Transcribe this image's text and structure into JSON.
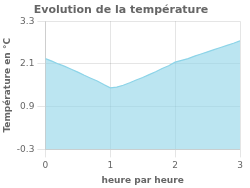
{
  "chart_data": {
    "type": "area",
    "title": "Evolution de la température",
    "x_label": "heure par heure",
    "y_label": "Température en °C",
    "x": [
      0,
      0.1,
      0.2,
      0.3,
      0.4,
      0.5,
      0.6,
      0.7,
      0.8,
      0.9,
      1.0,
      1.1,
      1.2,
      1.3,
      1.4,
      1.5,
      1.6,
      1.7,
      1.8,
      1.9,
      2.0,
      2.1,
      2.2,
      2.3,
      2.4,
      2.5,
      2.6,
      2.7,
      2.8,
      2.9,
      3.0
    ],
    "values": [
      2.25,
      2.18,
      2.1,
      2.03,
      1.95,
      1.87,
      1.78,
      1.7,
      1.62,
      1.52,
      1.43,
      1.45,
      1.5,
      1.57,
      1.65,
      1.72,
      1.8,
      1.88,
      1.97,
      2.05,
      2.15,
      2.2,
      2.25,
      2.32,
      2.38,
      2.44,
      2.5,
      2.56,
      2.62,
      2.68,
      2.75
    ],
    "color": "#8dd4e8",
    "xlim": [
      0,
      3
    ],
    "xticks": [
      0,
      1,
      2,
      3
    ],
    "ylim": [
      -0.3,
      3.3
    ],
    "yticks": [
      -0.3,
      0.9,
      2.1,
      3.3
    ],
    "grid": true
  }
}
